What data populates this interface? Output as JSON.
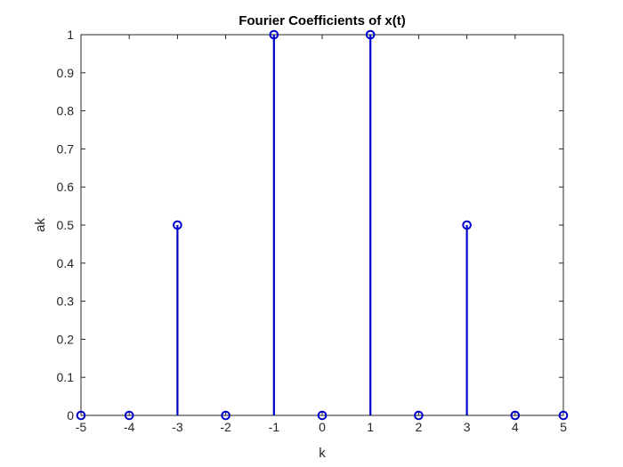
{
  "chart_data": {
    "type": "stem",
    "title": "Fourier Coefficients of x(t)",
    "xlabel": "k",
    "ylabel": "ak",
    "xlim": [
      -5,
      5
    ],
    "ylim": [
      0,
      1
    ],
    "x": [
      -5,
      -4,
      -3,
      -2,
      -1,
      0,
      1,
      2,
      3,
      4,
      5
    ],
    "values": [
      0,
      0,
      0.5,
      0,
      1,
      0,
      1,
      0,
      0.5,
      0,
      0
    ],
    "xticks": [
      "-5",
      "-4",
      "-3",
      "-2",
      "-1",
      "0",
      "1",
      "2",
      "3",
      "4",
      "5"
    ],
    "yticks": [
      "0",
      "0.1",
      "0.2",
      "0.3",
      "0.4",
      "0.5",
      "0.6",
      "0.7",
      "0.8",
      "0.9",
      "1"
    ],
    "grid": false,
    "legend": "none",
    "colors": {
      "series": "#0000cc",
      "axes": "#262626"
    }
  }
}
